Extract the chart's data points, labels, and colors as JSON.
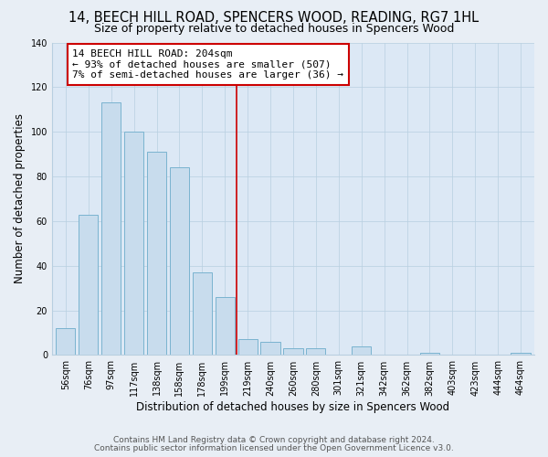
{
  "title": "14, BEECH HILL ROAD, SPENCERS WOOD, READING, RG7 1HL",
  "subtitle": "Size of property relative to detached houses in Spencers Wood",
  "xlabel": "Distribution of detached houses by size in Spencers Wood",
  "ylabel": "Number of detached properties",
  "bar_labels": [
    "56sqm",
    "76sqm",
    "97sqm",
    "117sqm",
    "138sqm",
    "158sqm",
    "178sqm",
    "199sqm",
    "219sqm",
    "240sqm",
    "260sqm",
    "280sqm",
    "301sqm",
    "321sqm",
    "342sqm",
    "362sqm",
    "382sqm",
    "403sqm",
    "423sqm",
    "444sqm",
    "464sqm"
  ],
  "bar_heights": [
    12,
    63,
    113,
    100,
    91,
    84,
    37,
    26,
    7,
    6,
    3,
    3,
    0,
    4,
    0,
    0,
    1,
    0,
    0,
    0,
    1
  ],
  "bar_color": "#c8dced",
  "bar_edge_color": "#7ab3d0",
  "annotation_line_color": "#cc0000",
  "annotation_box_edge_color": "#cc0000",
  "annotation_box_text_line1": "14 BEECH HILL ROAD: 204sqm",
  "annotation_box_text_line2": "← 93% of detached houses are smaller (507)",
  "annotation_box_text_line3": "7% of semi-detached houses are larger (36) →",
  "ylim": [
    0,
    140
  ],
  "yticks": [
    0,
    20,
    40,
    60,
    80,
    100,
    120,
    140
  ],
  "footer_line1": "Contains HM Land Registry data © Crown copyright and database right 2024.",
  "footer_line2": "Contains public sector information licensed under the Open Government Licence v3.0.",
  "bg_color": "#e8eef5",
  "plot_bg_color": "#dce8f5",
  "grid_color": "#b8cfe0",
  "title_fontsize": 10.5,
  "subtitle_fontsize": 9,
  "axis_label_fontsize": 8.5,
  "tick_fontsize": 7,
  "footer_fontsize": 6.5,
  "annotation_fontsize": 8
}
